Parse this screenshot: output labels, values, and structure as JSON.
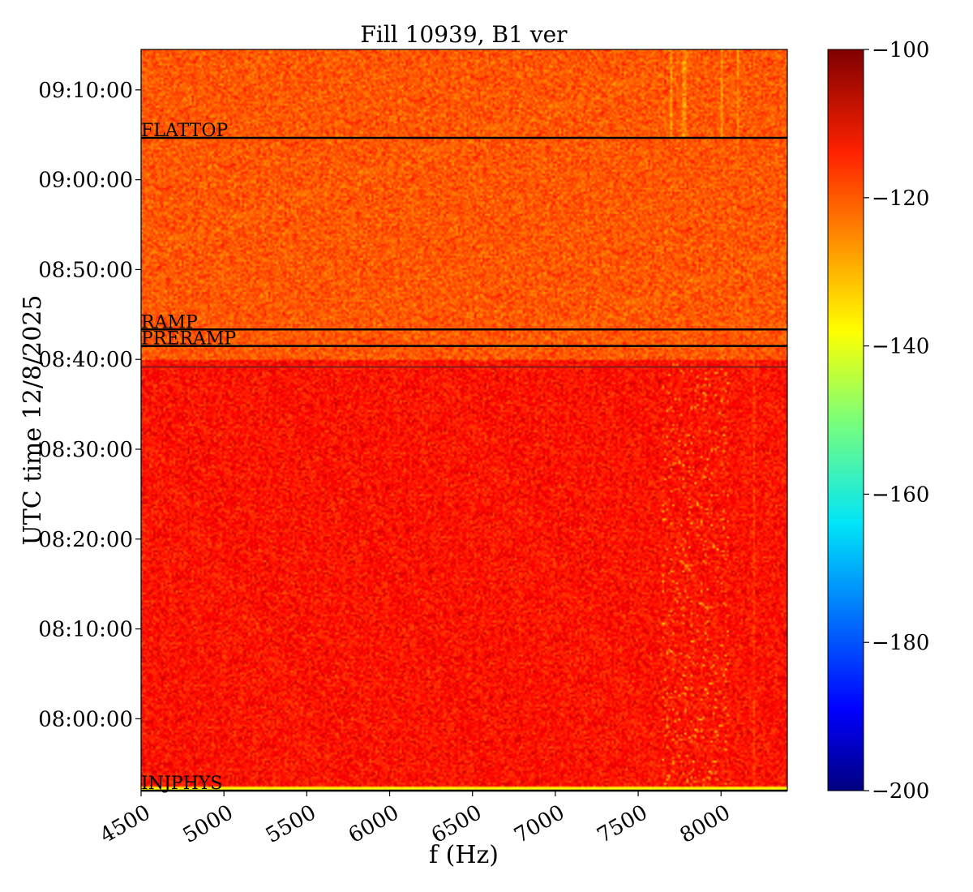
{
  "chart_data": {
    "type": "heatmap",
    "title": "Fill 10939, B1 ver",
    "xlabel": "f (Hz)",
    "ylabel": "UTC time 12/8/2025",
    "xlim": [
      4500,
      8400
    ],
    "ylim": [
      "07:52:00",
      "09:14:30"
    ],
    "x_ticks": [
      "4500",
      "5000",
      "5500",
      "6000",
      "6500",
      "7000",
      "7500",
      "8000"
    ],
    "y_ticks": [
      "08:00:00",
      "08:10:00",
      "08:20:00",
      "08:30:00",
      "08:40:00",
      "08:50:00",
      "09:00:00",
      "09:10:00"
    ],
    "colorbar": {
      "colormap": "jet",
      "range": [
        -200,
        -100
      ],
      "ticks": [
        "−100",
        "−120",
        "−140",
        "−160",
        "−180",
        "−200"
      ]
    },
    "events": [
      {
        "label": "FLATTOP",
        "time": "09:04:40"
      },
      {
        "label": "RAMP",
        "time": "08:43:20"
      },
      {
        "label": "PRERAMP",
        "time": "08:41:30"
      },
      {
        "label": "INJPHYS",
        "time": "07:52:00"
      }
    ],
    "extra_lines": [
      {
        "time": "08:39:10",
        "color": "#8a1a1a"
      }
    ],
    "regions": [
      {
        "from": "07:52:00",
        "to": "08:40:00",
        "level_db": -114
      },
      {
        "from": "08:40:00",
        "to": "09:14:30",
        "level_db": -121
      }
    ],
    "grid": false
  }
}
